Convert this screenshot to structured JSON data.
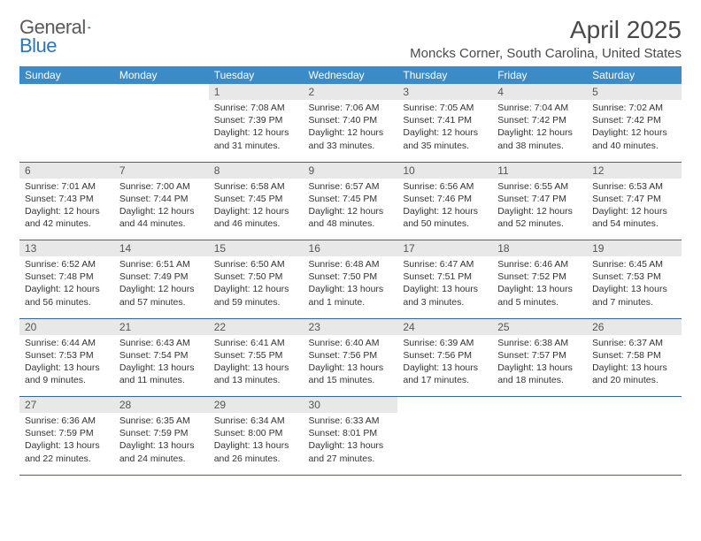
{
  "logo": {
    "text1": "General",
    "text2": "Blue"
  },
  "title": "April 2025",
  "location": "Moncks Corner, South Carolina, United States",
  "colors": {
    "header_bg": "#3b8bc9",
    "header_text": "#ffffff",
    "daynum_bg": "#e8e8e8",
    "daynum_text": "#555555",
    "body_text": "#333333",
    "rule": "#33689e",
    "logo_gray": "#5a5a5a",
    "logo_blue": "#2f74b5"
  },
  "weekdays": [
    "Sunday",
    "Monday",
    "Tuesday",
    "Wednesday",
    "Thursday",
    "Friday",
    "Saturday"
  ],
  "weeks": [
    [
      null,
      null,
      {
        "n": "1",
        "sr": "7:08 AM",
        "ss": "7:39 PM",
        "dl": "12 hours and 31 minutes."
      },
      {
        "n": "2",
        "sr": "7:06 AM",
        "ss": "7:40 PM",
        "dl": "12 hours and 33 minutes."
      },
      {
        "n": "3",
        "sr": "7:05 AM",
        "ss": "7:41 PM",
        "dl": "12 hours and 35 minutes."
      },
      {
        "n": "4",
        "sr": "7:04 AM",
        "ss": "7:42 PM",
        "dl": "12 hours and 38 minutes."
      },
      {
        "n": "5",
        "sr": "7:02 AM",
        "ss": "7:42 PM",
        "dl": "12 hours and 40 minutes."
      }
    ],
    [
      {
        "n": "6",
        "sr": "7:01 AM",
        "ss": "7:43 PM",
        "dl": "12 hours and 42 minutes."
      },
      {
        "n": "7",
        "sr": "7:00 AM",
        "ss": "7:44 PM",
        "dl": "12 hours and 44 minutes."
      },
      {
        "n": "8",
        "sr": "6:58 AM",
        "ss": "7:45 PM",
        "dl": "12 hours and 46 minutes."
      },
      {
        "n": "9",
        "sr": "6:57 AM",
        "ss": "7:45 PM",
        "dl": "12 hours and 48 minutes."
      },
      {
        "n": "10",
        "sr": "6:56 AM",
        "ss": "7:46 PM",
        "dl": "12 hours and 50 minutes."
      },
      {
        "n": "11",
        "sr": "6:55 AM",
        "ss": "7:47 PM",
        "dl": "12 hours and 52 minutes."
      },
      {
        "n": "12",
        "sr": "6:53 AM",
        "ss": "7:47 PM",
        "dl": "12 hours and 54 minutes."
      }
    ],
    [
      {
        "n": "13",
        "sr": "6:52 AM",
        "ss": "7:48 PM",
        "dl": "12 hours and 56 minutes."
      },
      {
        "n": "14",
        "sr": "6:51 AM",
        "ss": "7:49 PM",
        "dl": "12 hours and 57 minutes."
      },
      {
        "n": "15",
        "sr": "6:50 AM",
        "ss": "7:50 PM",
        "dl": "12 hours and 59 minutes."
      },
      {
        "n": "16",
        "sr": "6:48 AM",
        "ss": "7:50 PM",
        "dl": "13 hours and 1 minute."
      },
      {
        "n": "17",
        "sr": "6:47 AM",
        "ss": "7:51 PM",
        "dl": "13 hours and 3 minutes."
      },
      {
        "n": "18",
        "sr": "6:46 AM",
        "ss": "7:52 PM",
        "dl": "13 hours and 5 minutes."
      },
      {
        "n": "19",
        "sr": "6:45 AM",
        "ss": "7:53 PM",
        "dl": "13 hours and 7 minutes."
      }
    ],
    [
      {
        "n": "20",
        "sr": "6:44 AM",
        "ss": "7:53 PM",
        "dl": "13 hours and 9 minutes."
      },
      {
        "n": "21",
        "sr": "6:43 AM",
        "ss": "7:54 PM",
        "dl": "13 hours and 11 minutes."
      },
      {
        "n": "22",
        "sr": "6:41 AM",
        "ss": "7:55 PM",
        "dl": "13 hours and 13 minutes."
      },
      {
        "n": "23",
        "sr": "6:40 AM",
        "ss": "7:56 PM",
        "dl": "13 hours and 15 minutes."
      },
      {
        "n": "24",
        "sr": "6:39 AM",
        "ss": "7:56 PM",
        "dl": "13 hours and 17 minutes."
      },
      {
        "n": "25",
        "sr": "6:38 AM",
        "ss": "7:57 PM",
        "dl": "13 hours and 18 minutes."
      },
      {
        "n": "26",
        "sr": "6:37 AM",
        "ss": "7:58 PM",
        "dl": "13 hours and 20 minutes."
      }
    ],
    [
      {
        "n": "27",
        "sr": "6:36 AM",
        "ss": "7:59 PM",
        "dl": "13 hours and 22 minutes."
      },
      {
        "n": "28",
        "sr": "6:35 AM",
        "ss": "7:59 PM",
        "dl": "13 hours and 24 minutes."
      },
      {
        "n": "29",
        "sr": "6:34 AM",
        "ss": "8:00 PM",
        "dl": "13 hours and 26 minutes."
      },
      {
        "n": "30",
        "sr": "6:33 AM",
        "ss": "8:01 PM",
        "dl": "13 hours and 27 minutes."
      },
      null,
      null,
      null
    ]
  ],
  "labels": {
    "sunrise": "Sunrise:",
    "sunset": "Sunset:",
    "daylight": "Daylight:"
  }
}
